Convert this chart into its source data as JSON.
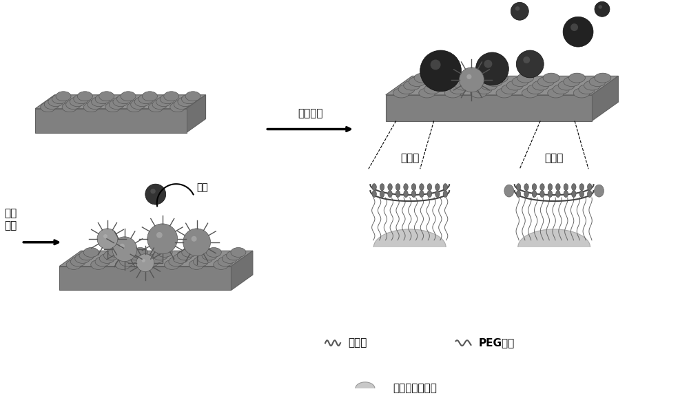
{
  "title": "",
  "bg_color": "#ffffff",
  "text_color": "#000000",
  "label_cell_culture": "细胞\n培养",
  "label_elutriation": "淡汰",
  "label_capture": "细胞捕获",
  "label_blood_cell": "血细胞",
  "label_target_cell": "靶细胞",
  "label_aptamer": "适配体",
  "label_peg": "PEG分子",
  "label_chitosan": "壳聚糖纳米粒子",
  "platform_color": "#909090",
  "platform_edge_color": "#606060",
  "bump_color": "#787878",
  "dark_cell_color": "#2a2a2a",
  "medium_cell_color": "#555555",
  "light_cell_color": "#888888",
  "arrow_color": "#000000",
  "membrane_color": "#404040"
}
